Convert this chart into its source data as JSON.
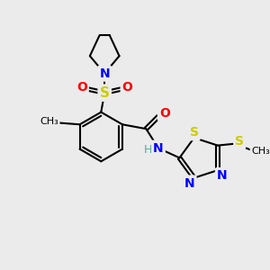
{
  "background_color": "#ebebeb",
  "bond_color": "#000000",
  "atom_colors": {
    "N": "#0000ff",
    "O": "#ff0000",
    "S": "#cccc00",
    "H": "#5aaa99",
    "C": "#000000"
  },
  "figsize": [
    3.0,
    3.0
  ],
  "dpi": 100
}
